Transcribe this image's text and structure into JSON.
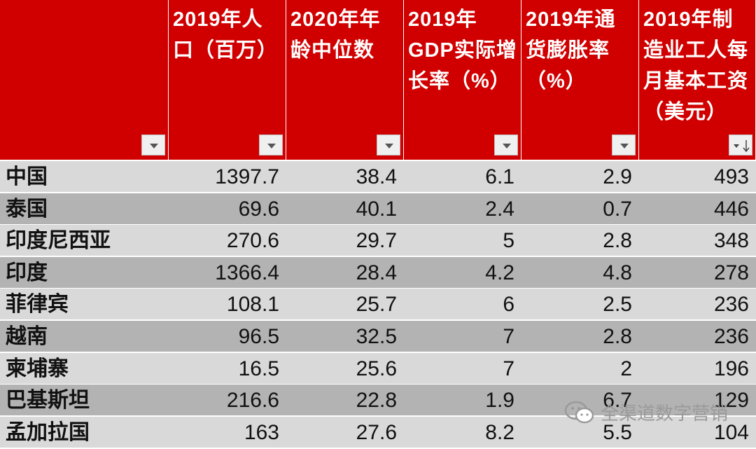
{
  "table": {
    "headers": [
      "2019年人口（百万）",
      "2020年年龄中位数",
      "2019年GDP实际增长率（%）",
      "2019年通货膨胀率（%）",
      "2019年制造业工人每月基本工资（美元）"
    ],
    "rows": [
      {
        "name": "中国",
        "values": [
          1397.7,
          38.4,
          6.1,
          2.9,
          493
        ]
      },
      {
        "name": "泰国",
        "values": [
          69.6,
          40.1,
          2.4,
          0.7,
          446
        ]
      },
      {
        "name": "印度尼西亚",
        "values": [
          270.6,
          29.7,
          5,
          2.8,
          348
        ]
      },
      {
        "name": "印度",
        "values": [
          1366.4,
          28.4,
          4.2,
          4.8,
          278
        ]
      },
      {
        "name": "菲律宾",
        "values": [
          108.1,
          25.7,
          6,
          2.5,
          236
        ]
      },
      {
        "name": "越南",
        "values": [
          96.5,
          32.5,
          7,
          2.8,
          236
        ]
      },
      {
        "name": "柬埔寨",
        "values": [
          16.5,
          25.6,
          7,
          2,
          196
        ]
      },
      {
        "name": "巴基斯坦",
        "values": [
          216.6,
          22.8,
          1.9,
          6.7,
          129
        ]
      },
      {
        "name": "孟加拉国",
        "values": [
          163,
          27.6,
          8.2,
          5.5,
          104
        ]
      }
    ]
  },
  "watermark": {
    "text": "全渠道数字营销"
  }
}
